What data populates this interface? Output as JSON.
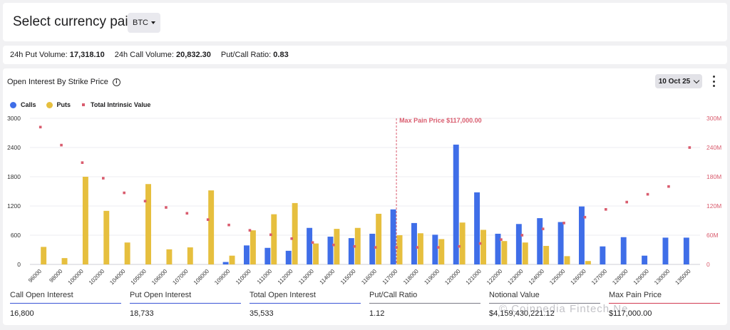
{
  "header": {
    "title": "Select currency pair:",
    "currency": "BTC"
  },
  "stats": {
    "put_volume_label": "24h Put Volume:",
    "put_volume": "17,318.10",
    "call_volume_label": "24h Call Volume:",
    "call_volume": "20,832.30",
    "ratio_label": "Put/Call Ratio:",
    "ratio": "0.83"
  },
  "panel": {
    "title": "Open Interest By Strike Price",
    "info_glyph": "i",
    "date": "10 Oct 25"
  },
  "legend": {
    "calls": "Calls",
    "puts": "Puts",
    "tiv": "Total Intrinsic Value"
  },
  "colors": {
    "calls": "#3f6ee8",
    "puts": "#e6bf3e",
    "tiv": "#d95c6e",
    "maxpain": "#d95c6e"
  },
  "chart_data": {
    "type": "bar",
    "categories": [
      "96000",
      "98000",
      "100000",
      "102000",
      "104000",
      "105000",
      "106000",
      "107000",
      "108000",
      "109000",
      "110000",
      "111000",
      "112000",
      "113000",
      "114000",
      "115000",
      "116000",
      "117000",
      "118000",
      "119000",
      "120000",
      "121000",
      "122000",
      "123000",
      "124000",
      "125000",
      "126000",
      "127000",
      "128000",
      "129000",
      "130000",
      "135000"
    ],
    "series": [
      {
        "name": "Calls",
        "axis": "left",
        "values": [
          0,
          0,
          0,
          0,
          0,
          0,
          0,
          0,
          0,
          50,
          390,
          340,
          280,
          750,
          570,
          540,
          630,
          1130,
          850,
          610,
          2460,
          1480,
          630,
          830,
          950,
          870,
          1190,
          370,
          560,
          180,
          550,
          550
        ]
      },
      {
        "name": "Puts",
        "axis": "left",
        "values": [
          360,
          130,
          1800,
          1100,
          450,
          1650,
          310,
          350,
          1520,
          180,
          700,
          1030,
          1260,
          430,
          730,
          750,
          1040,
          600,
          640,
          520,
          860,
          710,
          480,
          450,
          380,
          170,
          70,
          0,
          0,
          0,
          0,
          0
        ]
      },
      {
        "name": "Total Intrinsic Value",
        "type": "scatter",
        "axis": "right",
        "values": [
          282,
          245,
          209,
          177,
          147,
          130,
          117,
          105,
          92,
          81,
          70,
          61,
          53,
          45,
          40,
          37,
          35,
          35,
          35,
          35,
          37,
          43,
          51,
          60,
          73,
          85,
          97,
          113,
          128,
          144,
          160,
          240
        ]
      }
    ],
    "yleft_ticks": [
      "0",
      "600",
      "1200",
      "1800",
      "2400",
      "3000"
    ],
    "yright_ticks": [
      "0",
      "60M",
      "120M",
      "180M",
      "240M",
      "300M"
    ],
    "ylim": [
      0,
      3000
    ],
    "yright_lim": [
      0,
      300
    ],
    "max_pain_label": "Max Pain Price $117,000.00",
    "max_pain_strike": "117000",
    "grid": true,
    "legend_position": "top-left"
  },
  "metrics": [
    {
      "label": "Call Open Interest",
      "value": "16,800"
    },
    {
      "label": "Put Open Interest",
      "value": "18,733"
    },
    {
      "label": "Total Open Interest",
      "value": "35,533"
    },
    {
      "label": "Put/Call Ratio",
      "value": "1.12"
    },
    {
      "label": "Notional Value",
      "value": "$4,159,430,221.12"
    },
    {
      "label": "Max Pain Price",
      "value": "$117,000.00"
    }
  ],
  "watermark": "© Coinpedia Fintech Ne..."
}
